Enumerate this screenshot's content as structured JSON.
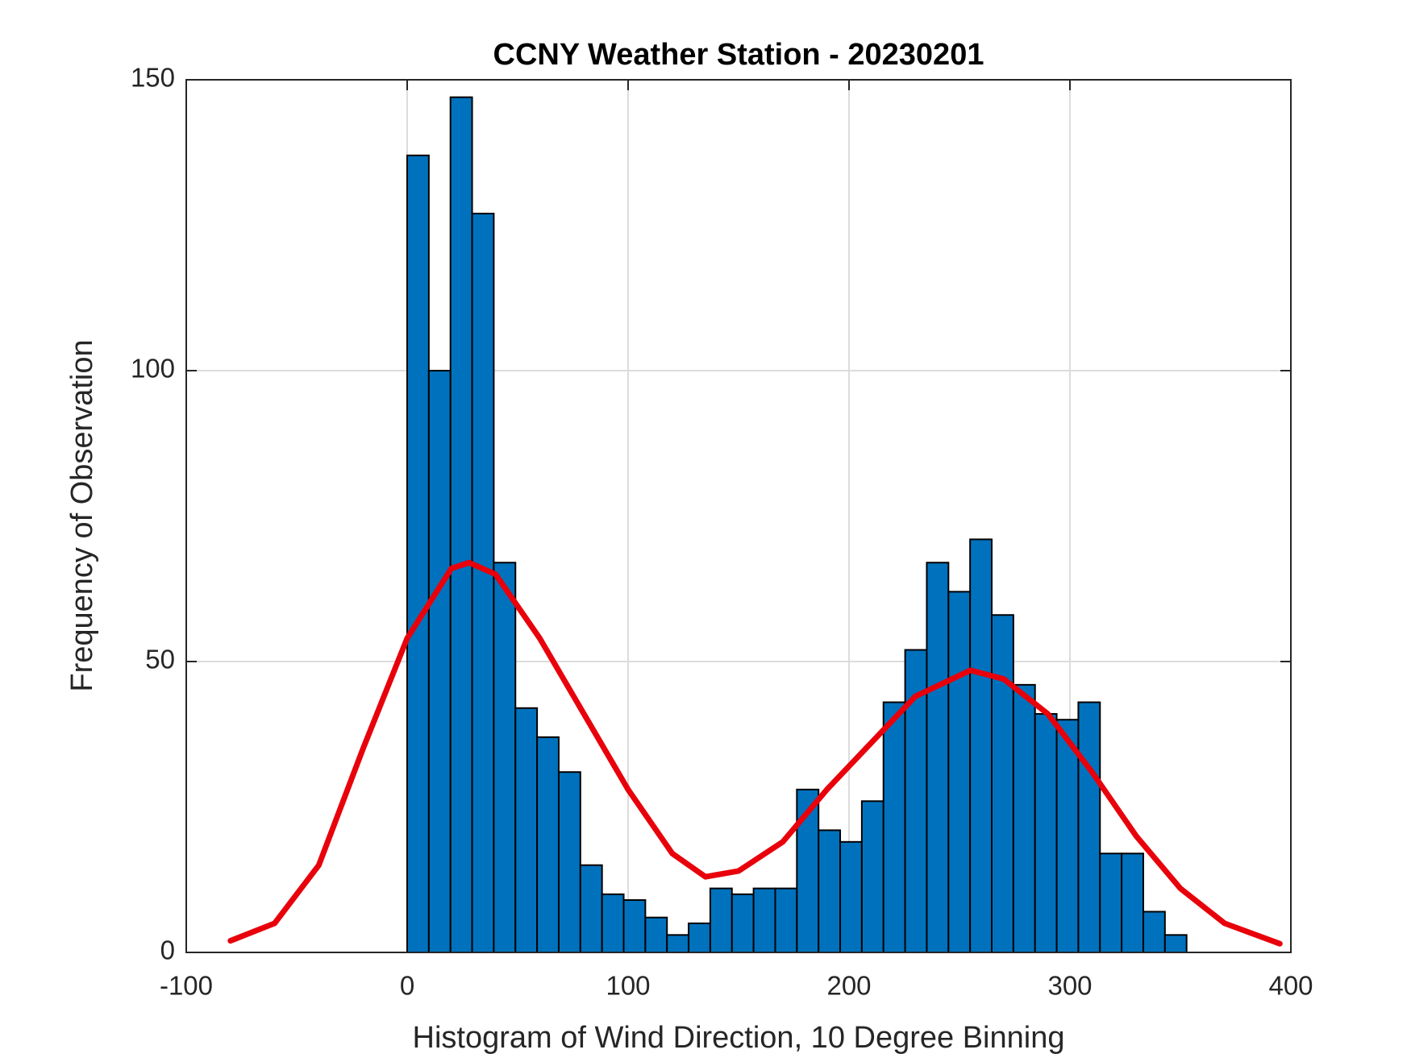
{
  "chart_data": {
    "type": "histogram",
    "title": "CCNY Weather Station - 20230201",
    "xlabel": "Histogram of Wind Direction, 10 Degree Binning",
    "ylabel": "Frequency of Observation",
    "bins": [
      0,
      9.8,
      19.6,
      29.4,
      39.2,
      49,
      58.8,
      68.6,
      78.4,
      88.2,
      98,
      107.8,
      117.6,
      127.4,
      137.2,
      147,
      156.8,
      166.6,
      176.4,
      186.2,
      196,
      205.8,
      215.6,
      225.4,
      235.2,
      245,
      254.8,
      264.6,
      274.4,
      284.2,
      294,
      303.8,
      313.6,
      323.4,
      333.2,
      343,
      352.8
    ],
    "values": [
      137,
      100,
      147,
      127,
      67,
      42,
      37,
      31,
      15,
      10,
      9,
      6,
      3,
      5,
      11,
      10,
      11,
      11,
      28,
      21,
      19,
      26,
      43,
      52,
      67,
      62,
      71,
      58,
      46,
      41,
      40,
      43,
      17,
      17,
      7,
      3
    ],
    "color": "#0072bd",
    "edgecolor": "#000000",
    "fit": {
      "color": "#e8000b",
      "x": [
        -80,
        -60,
        -40,
        -20,
        0,
        10,
        20,
        28,
        40,
        60,
        80,
        100,
        120,
        135,
        150,
        170,
        190,
        210,
        230,
        255,
        270,
        290,
        310,
        330,
        350,
        370,
        395
      ],
      "y": [
        2,
        5,
        15,
        35,
        54,
        60,
        66,
        67,
        65,
        54,
        41,
        28,
        17,
        13,
        14,
        19,
        28,
        36,
        44,
        48.5,
        47,
        41,
        31,
        20,
        11,
        5,
        1.5
      ]
    },
    "xlim": [
      -100,
      400
    ],
    "ylim": [
      0,
      150
    ],
    "xticks": [
      -100,
      0,
      100,
      200,
      300,
      400
    ],
    "yticks": [
      0,
      50,
      100,
      150
    ],
    "grid": true
  }
}
